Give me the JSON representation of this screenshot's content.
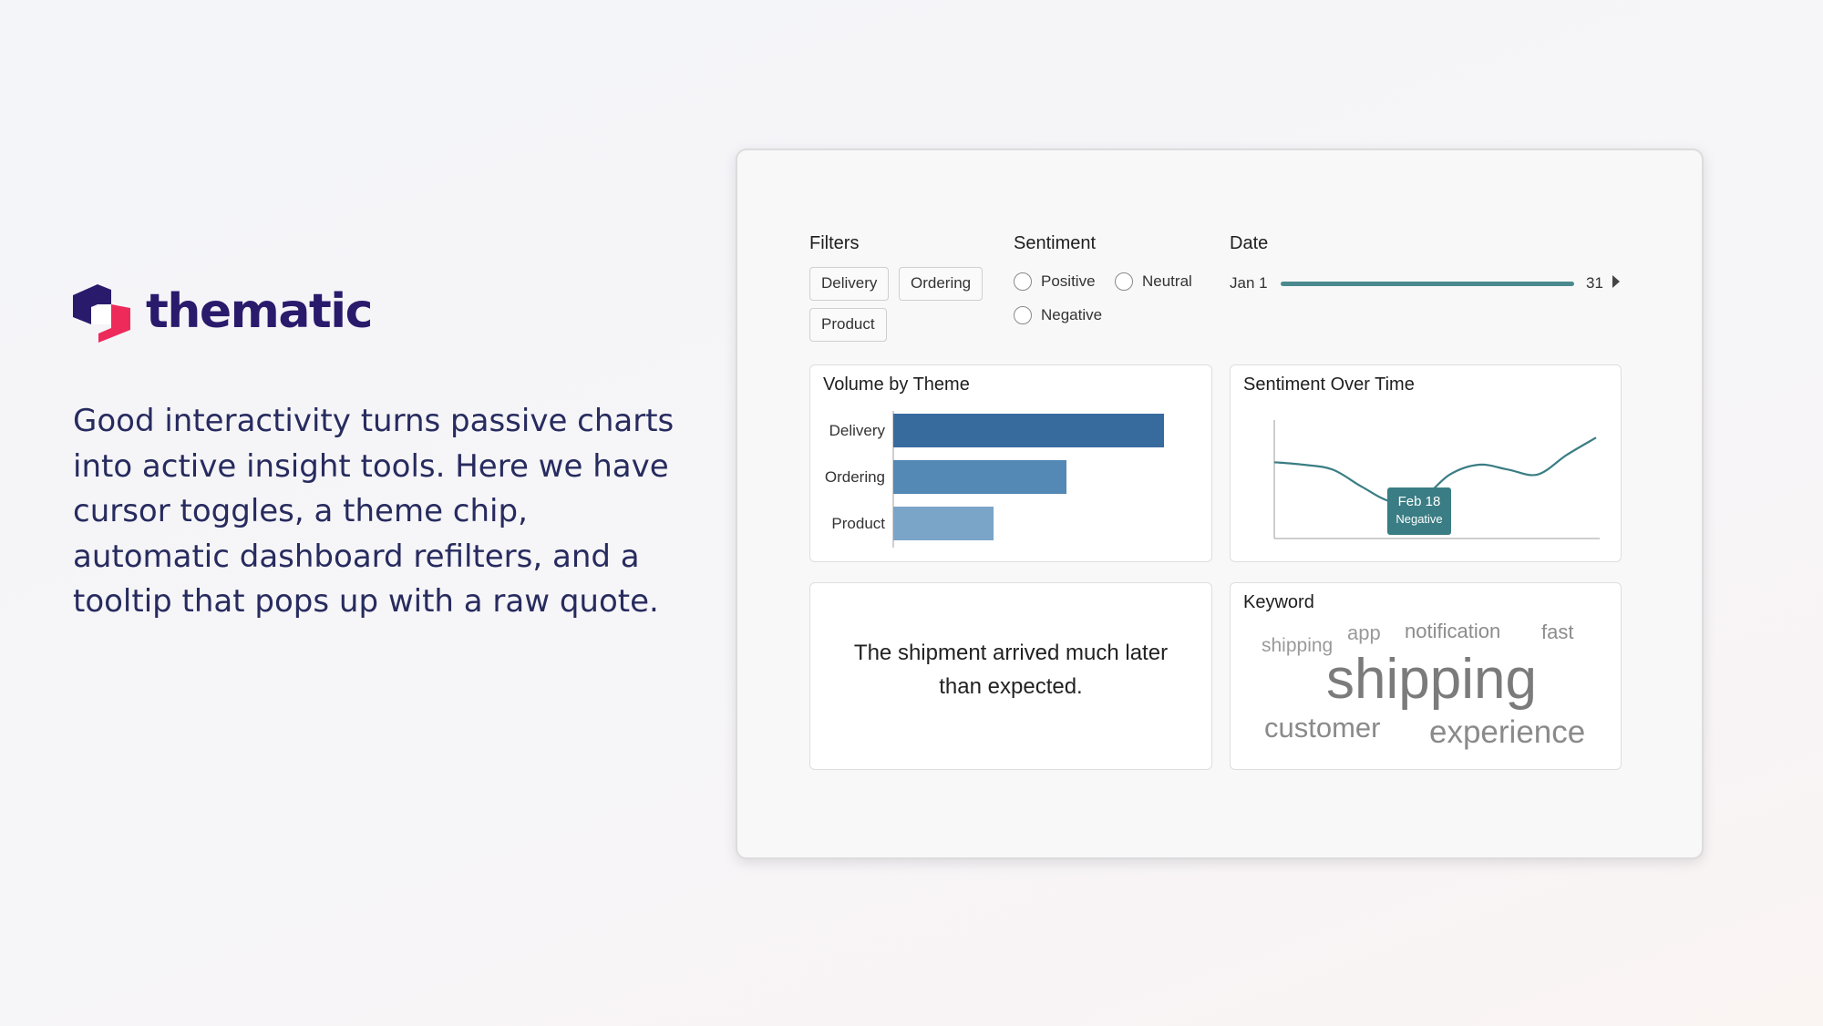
{
  "brand": {
    "name": "thematic"
  },
  "tagline": "Good interactivity turns passive charts into active insight tools. Here we have cursor toggles, a theme chip, automatic dashboard refilters, and a tooltip that pops up with a raw quote.",
  "filters": {
    "title": "Filters",
    "chips": [
      "Delivery",
      "Ordering",
      "Product"
    ]
  },
  "sentiment": {
    "title": "Sentiment",
    "options": [
      "Positive",
      "Neutral",
      "Negative"
    ]
  },
  "date": {
    "title": "Date",
    "start": "Jan 1",
    "end": "31"
  },
  "volume_panel": {
    "title": "Volume by Theme"
  },
  "sentiment_panel": {
    "title": "Sentiment Over Time",
    "tooltip": {
      "date": "Feb 18",
      "label": "Negative"
    }
  },
  "quote_panel": {
    "quote": "The shipment arrived much later than expected."
  },
  "keyword_panel": {
    "title": "Keyword",
    "words": [
      "shipping",
      "app",
      "notification",
      "fast",
      "shipping",
      "customer",
      "experience"
    ]
  },
  "colors": {
    "brand_dark": "#2a1a6c",
    "brand_pink": "#ee2a5b",
    "bar_1": "#376b9e",
    "bar_2": "#5488b5",
    "bar_3": "#7aa4c8",
    "line": "#3a7d84",
    "tooltip": "#3a7d84"
  },
  "chart_data": [
    {
      "type": "bar",
      "title": "Volume by Theme",
      "categories": [
        "Delivery",
        "Ordering",
        "Product"
      ],
      "values": [
        100,
        64,
        37
      ],
      "orientation": "horizontal",
      "grid": false
    },
    {
      "type": "line",
      "title": "Sentiment Over Time",
      "x": [
        0,
        1,
        2,
        3,
        4,
        5,
        6,
        7,
        8,
        9,
        10,
        11
      ],
      "y": [
        0.62,
        0.6,
        0.56,
        0.42,
        0.3,
        0.32,
        0.52,
        0.6,
        0.56,
        0.52,
        0.68,
        0.82
      ],
      "highlight": {
        "label": "Feb 18",
        "sentiment": "Negative"
      },
      "grid": false
    }
  ]
}
